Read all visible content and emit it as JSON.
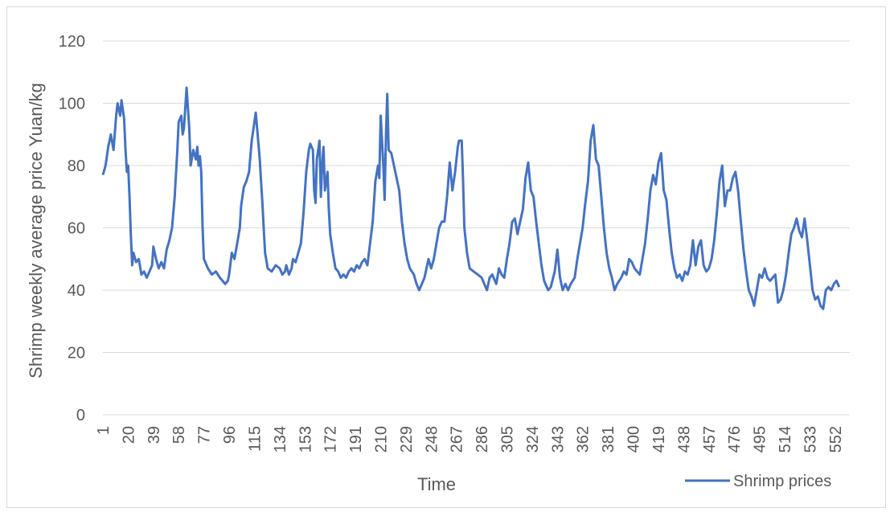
{
  "chart_data": {
    "type": "line",
    "title": "",
    "xlabel": "Time",
    "ylabel": "Shrimp weekly average price Yuan/kg",
    "ylim": [
      0,
      120
    ],
    "yticks": [
      0,
      20,
      40,
      60,
      80,
      100,
      120
    ],
    "x_tick_labels": [
      "1",
      "20",
      "39",
      "58",
      "77",
      "96",
      "115",
      "134",
      "153",
      "172",
      "191",
      "210",
      "229",
      "248",
      "267",
      "286",
      "305",
      "324",
      "343",
      "362",
      "381",
      "400",
      "419",
      "438",
      "457",
      "476",
      "495",
      "514",
      "533",
      "552"
    ],
    "x_range": [
      1,
      563
    ],
    "grid": "horizontal",
    "legend_position": "bottom-right",
    "colors": {
      "series": "#4472c4",
      "grid": "#d9d9d9",
      "text": "#595959"
    },
    "anchors": [
      [
        1,
        77
      ],
      [
        3,
        80
      ],
      [
        5,
        86
      ],
      [
        7,
        90
      ],
      [
        9,
        85
      ],
      [
        11,
        96
      ],
      [
        12,
        100
      ],
      [
        14,
        96
      ],
      [
        15,
        101
      ],
      [
        17,
        95
      ],
      [
        18,
        85
      ],
      [
        19,
        78
      ],
      [
        20,
        80
      ],
      [
        21,
        70
      ],
      [
        22,
        58
      ],
      [
        23,
        48
      ],
      [
        24,
        52
      ],
      [
        26,
        49
      ],
      [
        28,
        50
      ],
      [
        30,
        45
      ],
      [
        32,
        46
      ],
      [
        34,
        44
      ],
      [
        36,
        46
      ],
      [
        38,
        48
      ],
      [
        39,
        54
      ],
      [
        41,
        50
      ],
      [
        43,
        47
      ],
      [
        45,
        49
      ],
      [
        47,
        47
      ],
      [
        49,
        53
      ],
      [
        51,
        56
      ],
      [
        53,
        60
      ],
      [
        55,
        70
      ],
      [
        57,
        85
      ],
      [
        58,
        94
      ],
      [
        60,
        96
      ],
      [
        61,
        90
      ],
      [
        62,
        92
      ],
      [
        64,
        105
      ],
      [
        66,
        92
      ],
      [
        67,
        80
      ],
      [
        69,
        85
      ],
      [
        71,
        82
      ],
      [
        72,
        86
      ],
      [
        73,
        80
      ],
      [
        74,
        83
      ],
      [
        75,
        78
      ],
      [
        76,
        60
      ],
      [
        77,
        50
      ],
      [
        78,
        49
      ],
      [
        80,
        47
      ],
      [
        83,
        45
      ],
      [
        86,
        46
      ],
      [
        89,
        44
      ],
      [
        91,
        43
      ],
      [
        93,
        42
      ],
      [
        95,
        43
      ],
      [
        96,
        45
      ],
      [
        98,
        52
      ],
      [
        100,
        50
      ],
      [
        102,
        55
      ],
      [
        104,
        60
      ],
      [
        105,
        67
      ],
      [
        107,
        73
      ],
      [
        109,
        75
      ],
      [
        111,
        78
      ],
      [
        113,
        88
      ],
      [
        114,
        91
      ],
      [
        116,
        97
      ],
      [
        117,
        92
      ],
      [
        119,
        82
      ],
      [
        120,
        75
      ],
      [
        121,
        68
      ],
      [
        122,
        60
      ],
      [
        123,
        52
      ],
      [
        125,
        47
      ],
      [
        128,
        46
      ],
      [
        131,
        48
      ],
      [
        134,
        47
      ],
      [
        136,
        45
      ],
      [
        138,
        46
      ],
      [
        139,
        48
      ],
      [
        141,
        45
      ],
      [
        143,
        47
      ],
      [
        144,
        50
      ],
      [
        146,
        49
      ],
      [
        148,
        52
      ],
      [
        150,
        55
      ],
      [
        152,
        65
      ],
      [
        154,
        78
      ],
      [
        156,
        85
      ],
      [
        157,
        87
      ],
      [
        159,
        85
      ],
      [
        160,
        72
      ],
      [
        161,
        68
      ],
      [
        162,
        82
      ],
      [
        164,
        88
      ],
      [
        165,
        70
      ],
      [
        166,
        80
      ],
      [
        167,
        86
      ],
      [
        168,
        72
      ],
      [
        170,
        78
      ],
      [
        171,
        66
      ],
      [
        172,
        58
      ],
      [
        174,
        52
      ],
      [
        176,
        47
      ],
      [
        178,
        46
      ],
      [
        180,
        44
      ],
      [
        182,
        45
      ],
      [
        184,
        44
      ],
      [
        186,
        46
      ],
      [
        188,
        47
      ],
      [
        190,
        46
      ],
      [
        192,
        48
      ],
      [
        194,
        47
      ],
      [
        196,
        49
      ],
      [
        198,
        50
      ],
      [
        200,
        48
      ],
      [
        202,
        55
      ],
      [
        204,
        62
      ],
      [
        206,
        75
      ],
      [
        208,
        80
      ],
      [
        209,
        76
      ],
      [
        210,
        96
      ],
      [
        212,
        80
      ],
      [
        213,
        69
      ],
      [
        214,
        90
      ],
      [
        215,
        103
      ],
      [
        216,
        85
      ],
      [
        218,
        84
      ],
      [
        220,
        80
      ],
      [
        222,
        76
      ],
      [
        224,
        72
      ],
      [
        226,
        62
      ],
      [
        228,
        55
      ],
      [
        230,
        50
      ],
      [
        232,
        47
      ],
      [
        235,
        45
      ],
      [
        237,
        42
      ],
      [
        239,
        40
      ],
      [
        241,
        42
      ],
      [
        243,
        44
      ],
      [
        246,
        50
      ],
      [
        248,
        47
      ],
      [
        250,
        50
      ],
      [
        252,
        55
      ],
      [
        254,
        60
      ],
      [
        256,
        62
      ],
      [
        258,
        62
      ],
      [
        260,
        70
      ],
      [
        262,
        81
      ],
      [
        264,
        72
      ],
      [
        266,
        78
      ],
      [
        268,
        86
      ],
      [
        269,
        88
      ],
      [
        271,
        88
      ],
      [
        272,
        75
      ],
      [
        273,
        60
      ],
      [
        275,
        52
      ],
      [
        277,
        47
      ],
      [
        280,
        46
      ],
      [
        283,
        45
      ],
      [
        286,
        44
      ],
      [
        288,
        42
      ],
      [
        290,
        40
      ],
      [
        292,
        44
      ],
      [
        294,
        45
      ],
      [
        297,
        42
      ],
      [
        299,
        47
      ],
      [
        301,
        45
      ],
      [
        303,
        44
      ],
      [
        305,
        50
      ],
      [
        307,
        55
      ],
      [
        309,
        62
      ],
      [
        311,
        63
      ],
      [
        313,
        58
      ],
      [
        315,
        62
      ],
      [
        317,
        66
      ],
      [
        319,
        76
      ],
      [
        321,
        81
      ],
      [
        323,
        72
      ],
      [
        325,
        70
      ],
      [
        327,
        62
      ],
      [
        329,
        55
      ],
      [
        331,
        48
      ],
      [
        333,
        43
      ],
      [
        336,
        40
      ],
      [
        338,
        41
      ],
      [
        341,
        46
      ],
      [
        343,
        53
      ],
      [
        345,
        44
      ],
      [
        347,
        40
      ],
      [
        349,
        42
      ],
      [
        351,
        40
      ],
      [
        353,
        42
      ],
      [
        356,
        44
      ],
      [
        358,
        50
      ],
      [
        360,
        55
      ],
      [
        362,
        60
      ],
      [
        364,
        68
      ],
      [
        366,
        75
      ],
      [
        368,
        88
      ],
      [
        370,
        93
      ],
      [
        372,
        82
      ],
      [
        374,
        80
      ],
      [
        376,
        70
      ],
      [
        378,
        60
      ],
      [
        380,
        52
      ],
      [
        382,
        47
      ],
      [
        384,
        44
      ],
      [
        386,
        40
      ],
      [
        388,
        42
      ],
      [
        391,
        44
      ],
      [
        393,
        46
      ],
      [
        395,
        45
      ],
      [
        397,
        50
      ],
      [
        399,
        49
      ],
      [
        401,
        47
      ],
      [
        403,
        46
      ],
      [
        405,
        45
      ],
      [
        407,
        50
      ],
      [
        409,
        55
      ],
      [
        411,
        63
      ],
      [
        413,
        72
      ],
      [
        415,
        77
      ],
      [
        417,
        74
      ],
      [
        419,
        81
      ],
      [
        421,
        84
      ],
      [
        423,
        72
      ],
      [
        425,
        69
      ],
      [
        427,
        60
      ],
      [
        429,
        52
      ],
      [
        431,
        47
      ],
      [
        433,
        44
      ],
      [
        435,
        45
      ],
      [
        437,
        43
      ],
      [
        439,
        46
      ],
      [
        441,
        45
      ],
      [
        443,
        48
      ],
      [
        445,
        56
      ],
      [
        447,
        48
      ],
      [
        449,
        54
      ],
      [
        451,
        56
      ],
      [
        453,
        48
      ],
      [
        455,
        46
      ],
      [
        457,
        47
      ],
      [
        459,
        50
      ],
      [
        461,
        56
      ],
      [
        463,
        65
      ],
      [
        465,
        75
      ],
      [
        467,
        80
      ],
      [
        469,
        67
      ],
      [
        471,
        72
      ],
      [
        473,
        72
      ],
      [
        475,
        76
      ],
      [
        477,
        78
      ],
      [
        479,
        72
      ],
      [
        481,
        62
      ],
      [
        483,
        53
      ],
      [
        485,
        46
      ],
      [
        487,
        40
      ],
      [
        489,
        38
      ],
      [
        491,
        35
      ],
      [
        493,
        40
      ],
      [
        495,
        45
      ],
      [
        497,
        44
      ],
      [
        499,
        47
      ],
      [
        501,
        44
      ],
      [
        503,
        43
      ],
      [
        505,
        44
      ],
      [
        507,
        45
      ],
      [
        509,
        36
      ],
      [
        511,
        37
      ],
      [
        513,
        40
      ],
      [
        515,
        45
      ],
      [
        517,
        52
      ],
      [
        519,
        58
      ],
      [
        521,
        60
      ],
      [
        523,
        63
      ],
      [
        525,
        59
      ],
      [
        527,
        57
      ],
      [
        529,
        63
      ],
      [
        531,
        56
      ],
      [
        533,
        48
      ],
      [
        535,
        40
      ],
      [
        537,
        37
      ],
      [
        539,
        38
      ],
      [
        541,
        35
      ],
      [
        543,
        34
      ],
      [
        545,
        40
      ],
      [
        547,
        41
      ],
      [
        549,
        40
      ],
      [
        551,
        42
      ],
      [
        553,
        43
      ],
      [
        555,
        41
      ]
    ],
    "series": [
      {
        "name": "Shrimp prices"
      }
    ]
  }
}
